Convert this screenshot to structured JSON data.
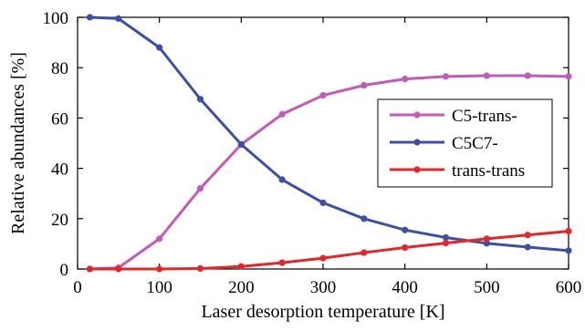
{
  "chart_data": {
    "type": "line",
    "xlabel": "Laser desorption temperature [K]",
    "ylabel": "Relative abundances [%]",
    "xlim": [
      0,
      600
    ],
    "ylim": [
      0,
      100
    ],
    "xticks": [
      0,
      100,
      200,
      300,
      400,
      500,
      600
    ],
    "yticks": [
      0,
      20,
      40,
      60,
      80,
      100
    ],
    "grid": false,
    "legend_position": "center-right",
    "x": [
      15,
      50,
      100,
      150,
      200,
      250,
      300,
      350,
      400,
      450,
      500,
      550,
      600
    ],
    "series": [
      {
        "name": "C5-trans-",
        "color": "#c45ab8",
        "values": [
          0,
          0.5,
          12,
          32,
          49.5,
          61.5,
          69,
          73,
          75.5,
          76.5,
          76.8,
          76.8,
          76.5
        ]
      },
      {
        "name": "C5C7-",
        "color": "#3c4fa8",
        "values": [
          100,
          99.5,
          88,
          67.5,
          49.5,
          35.5,
          26.3,
          20,
          15.5,
          12.5,
          10.2,
          8.7,
          7.3
        ]
      },
      {
        "name": "trans-trans",
        "color": "#e52628",
        "values": [
          0,
          0,
          0,
          0.2,
          1,
          2.5,
          4.3,
          6.5,
          8.5,
          10.3,
          12,
          13.5,
          15
        ]
      }
    ]
  }
}
